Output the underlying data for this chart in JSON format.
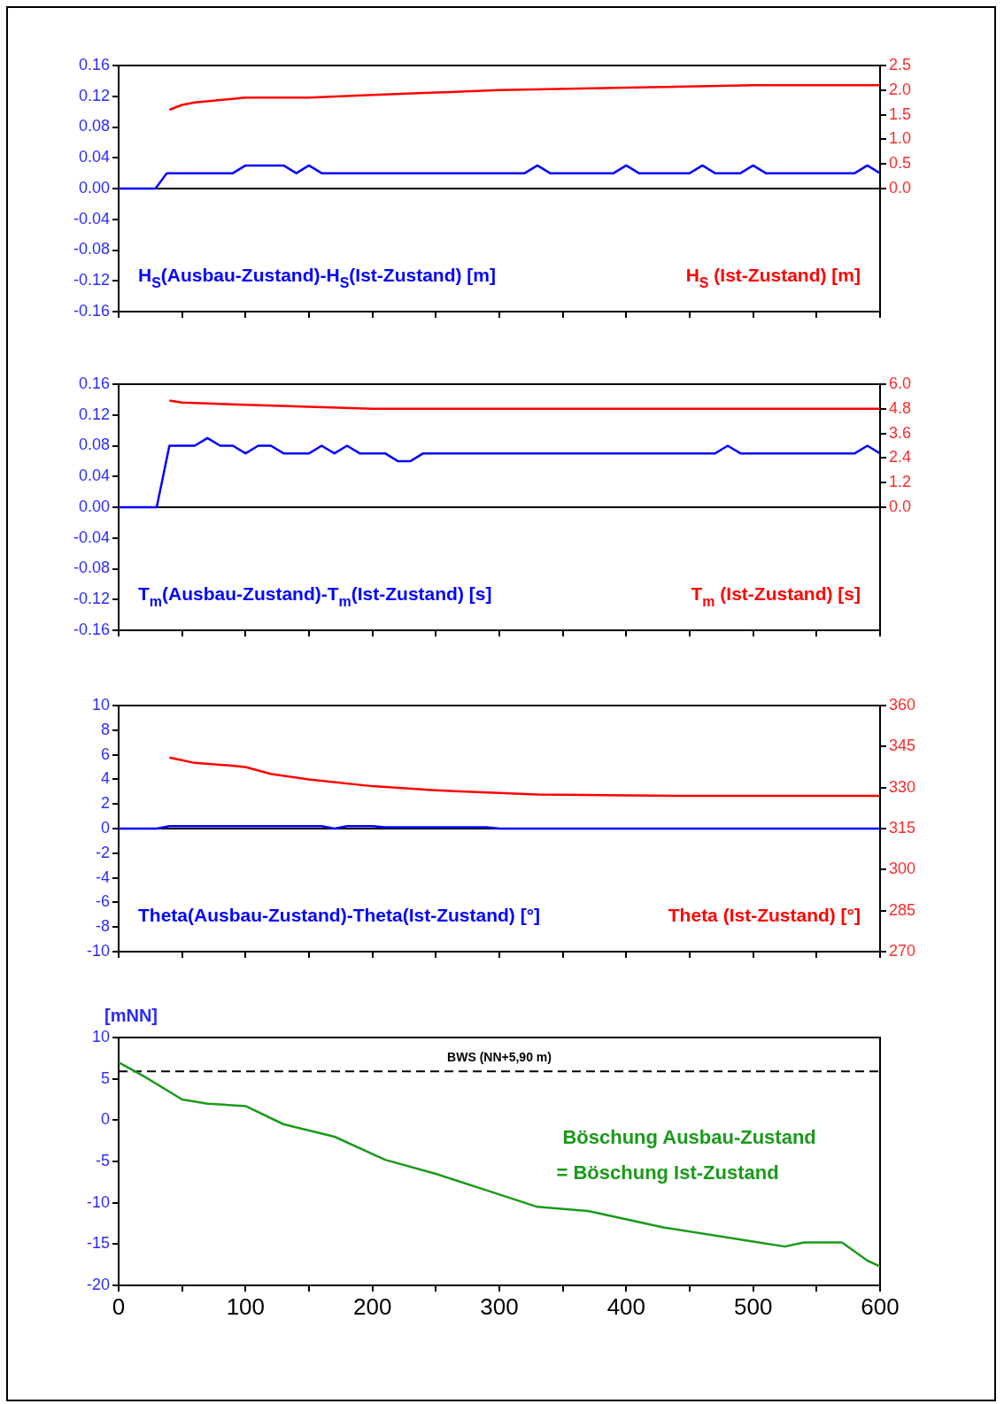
{
  "chart_data": [
    {
      "type": "line",
      "marker": "none",
      "line_style": "solid",
      "series": [
        {
          "name": "H$_{S}$(Ausbau-Zustand)-H$_{S}$(Ist-Zustand) [m]",
          "color": "#0000ff",
          "x": [
            0,
            29,
            38,
            90,
            100,
            130,
            140,
            150,
            160,
            320,
            330,
            340,
            390,
            400,
            410,
            450,
            460,
            470,
            490,
            500,
            510,
            580,
            590,
            600
          ],
          "values": [
            0,
            0,
            0.02,
            0.02,
            0.03,
            0.03,
            0.02,
            0.03,
            0.02,
            0.02,
            0.03,
            0.02,
            0.02,
            0.03,
            0.02,
            0.02,
            0.03,
            0.02,
            0.02,
            0.03,
            0.02,
            0.02,
            0.03,
            0.02
          ]
        },
        {
          "name": "H$_{S}$ (Ist-Zustand) [m]",
          "color": "#ff0000",
          "axis": "y2",
          "x": [
            40,
            50,
            60,
            80,
            100,
            150,
            200,
            250,
            300,
            400,
            500,
            600
          ],
          "values": [
            1.6,
            1.7,
            1.75,
            1.8,
            1.85,
            1.85,
            1.9,
            1.95,
            2.0,
            2.05,
            2.1,
            2.1
          ]
        }
      ],
      "xlim": [
        0,
        600
      ],
      "xticks": [
        {
          "value": 0,
          "label": null
        },
        {
          "value": 50,
          "label": null
        },
        {
          "value": 100,
          "label": null
        },
        {
          "value": 150,
          "label": null
        },
        {
          "value": 200,
          "label": null
        },
        {
          "value": 250,
          "label": null
        },
        {
          "value": 300,
          "label": null
        },
        {
          "value": 350,
          "label": null
        },
        {
          "value": 400,
          "label": null
        },
        {
          "value": 450,
          "label": null
        },
        {
          "value": 500,
          "label": null
        },
        {
          "value": 550,
          "label": null
        },
        {
          "value": 600,
          "label": null
        }
      ],
      "ylim": [
        -0.16,
        0.16
      ],
      "yticks": [
        -0.16,
        -0.12,
        -0.08,
        -0.04,
        {
          "value": 0,
          "label": "0.00"
        },
        0.04,
        0.08,
        0.12,
        0.16
      ],
      "y2lim": [
        -2.5,
        2.5
      ],
      "y2ticks": [
        {
          "value": 0,
          "label": "0.0"
        },
        0.5,
        {
          "value": 1,
          "label": "1.0"
        },
        1.5,
        {
          "value": 2,
          "label": "2.0"
        },
        2.5
      ],
      "ref_lines": [
        {
          "axis": "y",
          "value": 0,
          "color": "#000000"
        }
      ],
      "tick_labels": "y"
    },
    {
      "type": "line",
      "marker": "none",
      "line_style": "solid",
      "series": [
        {
          "name": "T$_{m}$(Ausbau-Zustand)-T$_{m}$(Ist-Zustand) [s]",
          "color": "#0000ff",
          "x": [
            0,
            30,
            40,
            60,
            70,
            80,
            90,
            100,
            110,
            120,
            130,
            150,
            160,
            170,
            180,
            190,
            210,
            220,
            230,
            240,
            470,
            480,
            490,
            580,
            590,
            600
          ],
          "values": [
            0,
            0,
            0.08,
            0.08,
            0.09,
            0.08,
            0.08,
            0.07,
            0.08,
            0.08,
            0.07,
            0.07,
            0.08,
            0.07,
            0.08,
            0.07,
            0.07,
            0.06,
            0.06,
            0.07,
            0.07,
            0.08,
            0.07,
            0.07,
            0.08,
            0.07
          ]
        },
        {
          "name": "T$_{m}$ (Ist-Zustand) [s]",
          "color": "#ff0000",
          "axis": "y2",
          "x": [
            40,
            50,
            100,
            150,
            200,
            600
          ],
          "values": [
            5.2,
            5.1,
            5.0,
            4.9,
            4.8,
            4.8
          ]
        }
      ],
      "xlim": [
        0,
        600
      ],
      "xticks": [
        {
          "value": 0,
          "label": null
        },
        {
          "value": 50,
          "label": null
        },
        {
          "value": 100,
          "label": null
        },
        {
          "value": 150,
          "label": null
        },
        {
          "value": 200,
          "label": null
        },
        {
          "value": 250,
          "label": null
        },
        {
          "value": 300,
          "label": null
        },
        {
          "value": 350,
          "label": null
        },
        {
          "value": 400,
          "label": null
        },
        {
          "value": 450,
          "label": null
        },
        {
          "value": 500,
          "label": null
        },
        {
          "value": 550,
          "label": null
        },
        {
          "value": 600,
          "label": null
        }
      ],
      "ylim": [
        -0.16,
        0.16
      ],
      "yticks": [
        -0.16,
        -0.12,
        -0.08,
        -0.04,
        {
          "value": 0,
          "label": "0.00"
        },
        0.04,
        0.08,
        0.12,
        0.16
      ],
      "y2lim": [
        -6,
        6
      ],
      "y2ticks": [
        {
          "value": 0,
          "label": "0.0"
        },
        1.2,
        2.4,
        3.6,
        4.8,
        {
          "value": 6,
          "label": "6.0"
        }
      ],
      "ref_lines": [
        {
          "axis": "y",
          "value": 0,
          "color": "#000000"
        }
      ],
      "tick_labels": "y"
    },
    {
      "type": "line",
      "marker": "none",
      "line_style": "solid",
      "series": [
        {
          "name": "Theta(Ausbau-Zustand)-Theta(Ist-Zustand) [°]",
          "color": "#0000ff",
          "x": [
            0,
            30,
            40,
            160,
            170,
            180,
            200,
            210,
            290,
            300,
            600
          ],
          "values": [
            0,
            0,
            0.2,
            0.2,
            0,
            0.2,
            0.2,
            0.1,
            0.1,
            0,
            0
          ]
        },
        {
          "name": "Theta (Ist-Zustand) [°]",
          "color": "#ff0000",
          "axis": "y2",
          "x": [
            40,
            50,
            60,
            90,
            100,
            120,
            150,
            200,
            250,
            300,
            330,
            440,
            600
          ],
          "values": [
            341,
            340,
            339,
            338,
            337.5,
            335,
            333,
            330.5,
            329,
            328,
            327.5,
            327,
            327
          ]
        }
      ],
      "xlim": [
        0,
        600
      ],
      "xticks": [
        {
          "value": 0,
          "label": null
        },
        {
          "value": 50,
          "label": null
        },
        {
          "value": 100,
          "label": null
        },
        {
          "value": 150,
          "label": null
        },
        {
          "value": 200,
          "label": null
        },
        {
          "value": 250,
          "label": null
        },
        {
          "value": 300,
          "label": null
        },
        {
          "value": 350,
          "label": null
        },
        {
          "value": 400,
          "label": null
        },
        {
          "value": 450,
          "label": null
        },
        {
          "value": 500,
          "label": null
        },
        {
          "value": 550,
          "label": null
        },
        {
          "value": 600,
          "label": null
        }
      ],
      "ylim": [
        -10,
        10
      ],
      "yticks": [
        -10,
        -8,
        -6,
        -4,
        -2,
        0,
        2,
        4,
        6,
        8,
        10
      ],
      "y2lim": [
        270,
        360
      ],
      "y2ticks": [
        270,
        285,
        300,
        315,
        330,
        345,
        360
      ],
      "ref_lines": [
        {
          "axis": "y",
          "value": 0,
          "color": "#000000"
        }
      ],
      "tick_labels": "y"
    },
    {
      "type": "line",
      "marker": "none",
      "line_style": "solid",
      "ylabel": "[mNN]",
      "series": [
        {
          "name": "Böschung Ausbau-Zustand",
          "color": "#1a9a1a",
          "x": [
            0,
            20,
            50,
            70,
            100,
            130,
            170,
            210,
            250,
            290,
            330,
            370,
            430,
            500,
            525,
            540,
            570,
            590,
            600
          ],
          "values": [
            7,
            5.3,
            2.5,
            2,
            1.7,
            -0.5,
            -2,
            -4.8,
            -6.5,
            -8.5,
            -10.5,
            -11,
            -13,
            -14.7,
            -15.3,
            -14.8,
            -14.8,
            -17,
            -17.7
          ]
        }
      ],
      "annotations": [
        "= Böschung Ist-Zustand"
      ],
      "xlim": [
        0,
        600
      ],
      "xticks": [
        0,
        {
          "value": 50,
          "label": null
        },
        100,
        {
          "value": 150,
          "label": null
        },
        200,
        {
          "value": 250,
          "label": null
        },
        300,
        {
          "value": 350,
          "label": null
        },
        400,
        {
          "value": 450,
          "label": null
        },
        500,
        {
          "value": 550,
          "label": null
        },
        600
      ],
      "ylim": [
        -20,
        10
      ],
      "yticks": [
        -20,
        -15,
        -10,
        -5,
        0,
        5,
        10
      ],
      "ref_lines": [
        {
          "axis": "y",
          "value": 5.9,
          "label": "BWS (NN+5,90 m)",
          "color": "#000000",
          "line_style": "dashed"
        }
      ]
    }
  ]
}
